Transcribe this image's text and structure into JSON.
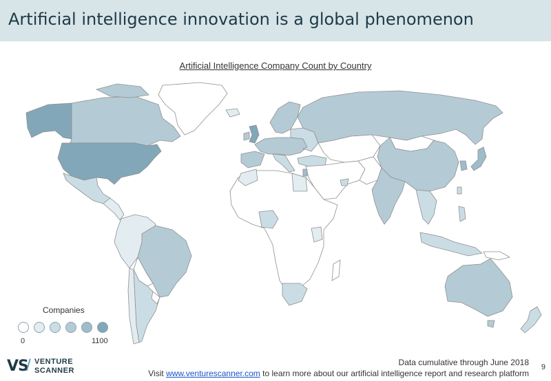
{
  "header": {
    "title": "Artificial intelligence innovation is a global phenomenon"
  },
  "map": {
    "title": "Artificial Intelligence Company Count by Country",
    "colors": {
      "none": "#ffffff",
      "c1": "#e3ecf0",
      "c2": "#cadde4",
      "c3": "#b4cbd6",
      "c4": "#9fbccb",
      "c5": "#82a7b8",
      "border": "#8f8f8f"
    },
    "countries": [
      {
        "name": "United States",
        "level": 5
      },
      {
        "name": "Canada",
        "level": 3
      },
      {
        "name": "Alaska",
        "level": 5
      },
      {
        "name": "Mexico",
        "level": 2
      },
      {
        "name": "Brazil",
        "level": 3
      },
      {
        "name": "Argentina",
        "level": 2
      },
      {
        "name": "Chile",
        "level": 2
      },
      {
        "name": "Russia",
        "level": 3
      },
      {
        "name": "China",
        "level": 3
      },
      {
        "name": "India",
        "level": 3
      },
      {
        "name": "Australia",
        "level": 3
      },
      {
        "name": "South Africa",
        "level": 2
      },
      {
        "name": "Nigeria",
        "level": 2
      },
      {
        "name": "Greenland",
        "level": 0
      }
    ]
  },
  "legend": {
    "title": "Companies",
    "min_label": "0",
    "max_label": "1100",
    "swatches": [
      "#ffffff",
      "#e3ecf0",
      "#cadde4",
      "#b4cbd6",
      "#9fbccb",
      "#82a7b8"
    ]
  },
  "logo": {
    "mark": "VS",
    "word1": "VENTURE",
    "word2": "SCANNER"
  },
  "footer": {
    "note": "Data cumulative through June 2018",
    "visit_prefix": "Visit ",
    "link": "www.venturescanner.com",
    "visit_suffix": " to learn more about our artificial intelligence report and research platform",
    "page_number": "9"
  }
}
